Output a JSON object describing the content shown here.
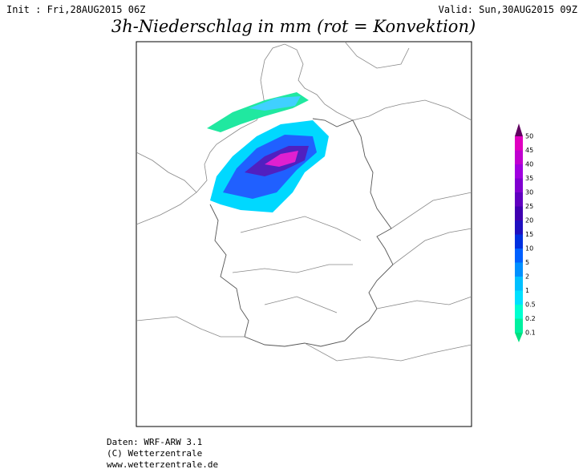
{
  "header": {
    "init": "Init : Fri,28AUG2015 06Z",
    "valid": "Valid: Sun,30AUG2015 09Z",
    "title": "3h-Niederschlag in mm (rot = Konvektion)"
  },
  "legend": {
    "labels": [
      "50",
      "45",
      "40",
      "35",
      "30",
      "25",
      "20",
      "15",
      "10",
      "5",
      "2",
      "1",
      "0.5",
      "0.2",
      "0.1"
    ]
  },
  "footer": {
    "lines": [
      "Daten: WRF-ARW 3.1",
      "(C) Wetterzentrale",
      "www.wetterzentrale.de"
    ]
  }
}
